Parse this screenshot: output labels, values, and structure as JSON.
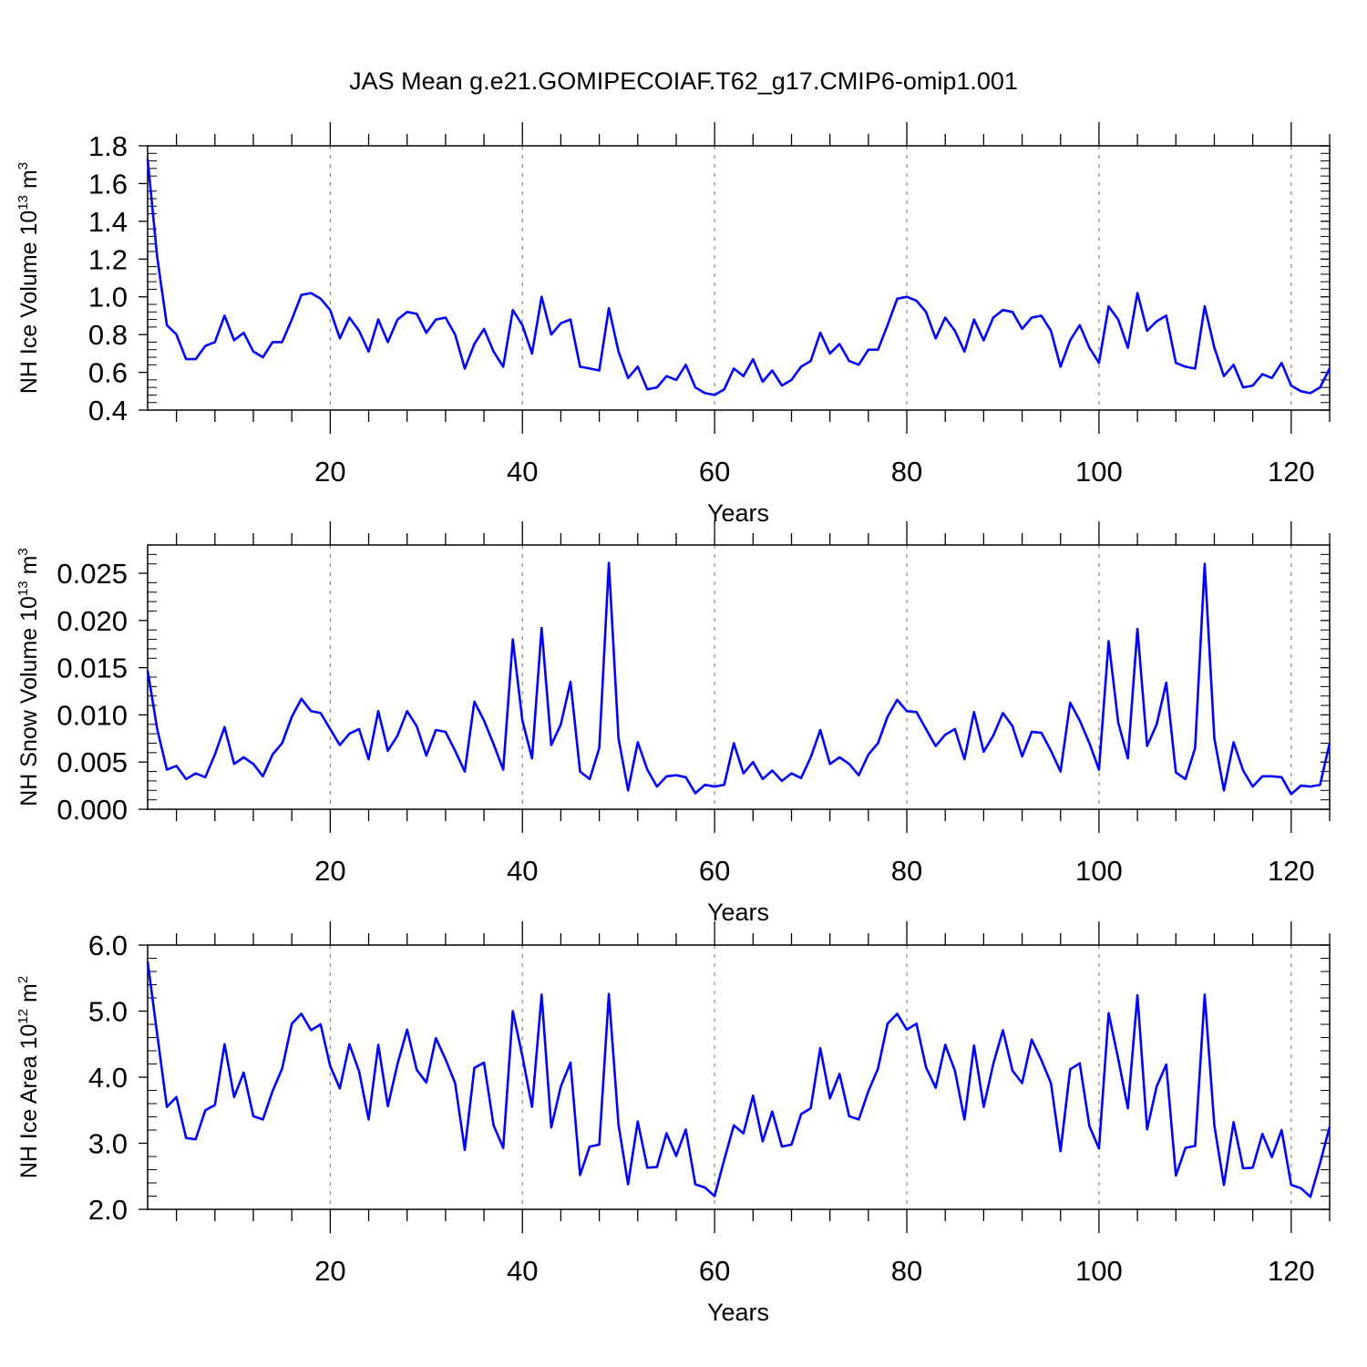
{
  "title": "JAS Mean g.e21.GOMIPECOIAF.T62_g17.CMIP6-omip1.001",
  "chart_data": [
    {
      "type": "line",
      "ylabel": {
        "prefix": "NH Ice Volume 10",
        "sup1": "13",
        "mid": " m",
        "sup2": "3"
      },
      "xlabel": "Years",
      "xlim": [
        1,
        124
      ],
      "ylim": [
        0.4,
        1.8
      ],
      "xticks": [
        20,
        40,
        60,
        80,
        100,
        120
      ],
      "yticks": [
        0.4,
        0.6,
        0.8,
        1.0,
        1.2,
        1.4,
        1.6,
        1.8
      ],
      "ytick_labels": [
        "0.4",
        "0.6",
        "0.8",
        "1.0",
        "1.2",
        "1.4",
        "1.6",
        "1.8"
      ],
      "grid": "vertical dashed at major x ticks",
      "color": "#0000ff",
      "x_start": 1,
      "values": [
        1.73,
        1.21,
        0.85,
        0.8,
        0.67,
        0.67,
        0.74,
        0.76,
        0.9,
        0.77,
        0.81,
        0.71,
        0.68,
        0.76,
        0.76,
        0.88,
        1.01,
        1.02,
        0.99,
        0.93,
        0.78,
        0.89,
        0.82,
        0.71,
        0.88,
        0.76,
        0.88,
        0.92,
        0.91,
        0.81,
        0.88,
        0.89,
        0.8,
        0.62,
        0.75,
        0.83,
        0.71,
        0.63,
        0.93,
        0.85,
        0.7,
        1.0,
        0.8,
        0.86,
        0.88,
        0.63,
        0.62,
        0.61,
        0.94,
        0.71,
        0.57,
        0.63,
        0.51,
        0.52,
        0.58,
        0.56,
        0.64,
        0.52,
        0.49,
        0.48,
        0.51,
        0.62,
        0.58,
        0.67,
        0.55,
        0.61,
        0.53,
        0.56,
        0.63,
        0.66,
        0.81,
        0.7,
        0.75,
        0.66,
        0.64,
        0.72,
        0.72,
        0.85,
        0.99,
        1.0,
        0.98,
        0.92,
        0.78,
        0.89,
        0.82,
        0.71,
        0.88,
        0.77,
        0.89,
        0.93,
        0.92,
        0.83,
        0.89,
        0.9,
        0.82,
        0.63,
        0.77,
        0.85,
        0.73,
        0.65,
        0.95,
        0.88,
        0.73,
        1.02,
        0.82,
        0.87,
        0.9,
        0.65,
        0.63,
        0.62,
        0.95,
        0.73,
        0.58,
        0.64,
        0.52,
        0.53,
        0.59,
        0.57,
        0.65,
        0.53,
        0.5,
        0.49,
        0.52,
        0.62
      ]
    },
    {
      "type": "line",
      "ylabel": {
        "prefix": "NH Snow Volume 10",
        "sup1": "13",
        "mid": " m",
        "sup2": "3"
      },
      "xlabel": "Years",
      "xlim": [
        1,
        124
      ],
      "ylim": [
        0.0,
        0.028
      ],
      "xticks": [
        20,
        40,
        60,
        80,
        100,
        120
      ],
      "yticks": [
        0.0,
        0.005,
        0.01,
        0.015,
        0.02,
        0.025
      ],
      "ytick_labels": [
        "0.000",
        "0.005",
        "0.010",
        "0.015",
        "0.020",
        "0.025"
      ],
      "grid": "vertical dashed at major x ticks",
      "color": "#0000ff",
      "x_start": 1,
      "values": [
        0.0147,
        0.0085,
        0.0042,
        0.0046,
        0.0032,
        0.0038,
        0.0034,
        0.0058,
        0.0087,
        0.0048,
        0.0055,
        0.0048,
        0.0035,
        0.0058,
        0.007,
        0.0098,
        0.0117,
        0.0104,
        0.0102,
        0.0085,
        0.0068,
        0.008,
        0.0085,
        0.0053,
        0.0104,
        0.0062,
        0.0078,
        0.0104,
        0.0088,
        0.0057,
        0.0084,
        0.0082,
        0.0062,
        0.004,
        0.0114,
        0.0094,
        0.0069,
        0.0042,
        0.018,
        0.0094,
        0.0054,
        0.0192,
        0.0068,
        0.009,
        0.0135,
        0.004,
        0.0032,
        0.0065,
        0.0261,
        0.0075,
        0.002,
        0.0071,
        0.0042,
        0.0024,
        0.0035,
        0.0036,
        0.0034,
        0.0017,
        0.0026,
        0.0024,
        0.0026,
        0.007,
        0.0038,
        0.005,
        0.0032,
        0.0041,
        0.003,
        0.0038,
        0.0033,
        0.0055,
        0.0084,
        0.0048,
        0.0055,
        0.0048,
        0.0036,
        0.0058,
        0.007,
        0.0098,
        0.0116,
        0.0104,
        0.0103,
        0.0085,
        0.0067,
        0.0079,
        0.0085,
        0.0053,
        0.0103,
        0.0061,
        0.0078,
        0.0102,
        0.0088,
        0.0056,
        0.0082,
        0.0081,
        0.0062,
        0.004,
        0.0113,
        0.0094,
        0.007,
        0.0042,
        0.0178,
        0.0092,
        0.0054,
        0.0191,
        0.0067,
        0.009,
        0.0134,
        0.0039,
        0.0032,
        0.0065,
        0.026,
        0.0075,
        0.002,
        0.0071,
        0.0041,
        0.0024,
        0.0035,
        0.0035,
        0.0034,
        0.0016,
        0.0025,
        0.0024,
        0.0026,
        0.007
      ]
    },
    {
      "type": "line",
      "ylabel": {
        "prefix": "NH Ice Area 10",
        "sup1": "12",
        "mid": " m",
        "sup2": "2"
      },
      "xlabel": "Years",
      "xlim": [
        1,
        124
      ],
      "ylim": [
        2.0,
        6.0
      ],
      "xticks": [
        20,
        40,
        60,
        80,
        100,
        120
      ],
      "yticks": [
        2.0,
        3.0,
        4.0,
        5.0,
        6.0
      ],
      "ytick_labels": [
        "2.0",
        "3.0",
        "4.0",
        "5.0",
        "6.0"
      ],
      "grid": "vertical dashed at major x ticks",
      "color": "#0000ff",
      "x_start": 1,
      "values": [
        5.75,
        4.65,
        3.55,
        3.7,
        3.08,
        3.06,
        3.5,
        3.58,
        4.5,
        3.7,
        4.07,
        3.41,
        3.36,
        3.79,
        4.13,
        4.81,
        4.96,
        4.71,
        4.8,
        4.17,
        3.83,
        4.5,
        4.09,
        3.36,
        4.49,
        3.56,
        4.2,
        4.72,
        4.11,
        3.92,
        4.59,
        4.27,
        3.91,
        2.9,
        4.14,
        4.22,
        3.27,
        2.93,
        5.0,
        4.32,
        3.55,
        5.25,
        3.24,
        3.86,
        4.22,
        2.52,
        2.95,
        2.98,
        5.26,
        3.28,
        2.38,
        3.33,
        2.63,
        2.64,
        3.15,
        2.81,
        3.21,
        2.38,
        2.33,
        2.2,
        2.75,
        3.27,
        3.15,
        3.72,
        3.03,
        3.48,
        2.95,
        2.98,
        3.44,
        3.53,
        4.44,
        3.68,
        4.05,
        3.41,
        3.36,
        3.79,
        4.13,
        4.81,
        4.96,
        4.72,
        4.81,
        4.15,
        3.84,
        4.49,
        4.1,
        3.36,
        4.48,
        3.55,
        4.2,
        4.71,
        4.1,
        3.91,
        4.57,
        4.26,
        3.91,
        2.88,
        4.12,
        4.21,
        3.26,
        2.92,
        4.97,
        4.28,
        3.53,
        5.24,
        3.21,
        3.86,
        4.19,
        2.51,
        2.93,
        2.96,
        5.25,
        3.27,
        2.37,
        3.32,
        2.62,
        2.63,
        3.14,
        2.79,
        3.2,
        2.37,
        2.32,
        2.19,
        2.7,
        3.25
      ]
    }
  ]
}
